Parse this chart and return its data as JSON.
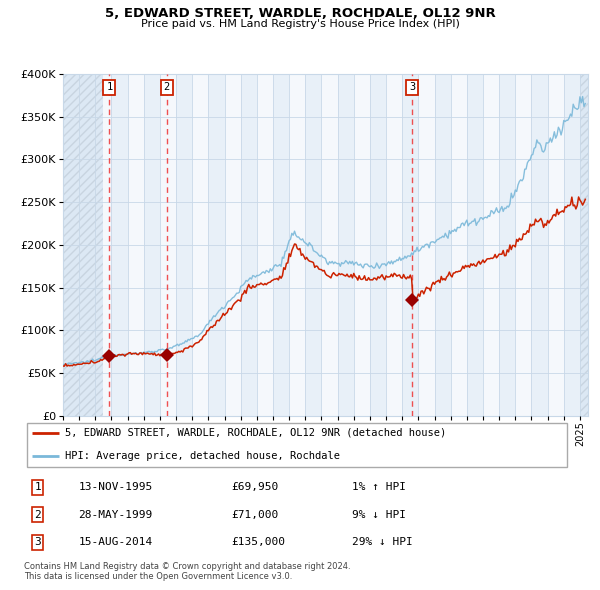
{
  "title1": "5, EDWARD STREET, WARDLE, ROCHDALE, OL12 9NR",
  "title2": "Price paid vs. HM Land Registry's House Price Index (HPI)",
  "legend1": "5, EDWARD STREET, WARDLE, ROCHDALE, OL12 9NR (detached house)",
  "legend2": "HPI: Average price, detached house, Rochdale",
  "sale1_date": "13-NOV-1995",
  "sale1_price": 69950,
  "sale1_hpi": "1% ↑ HPI",
  "sale2_date": "28-MAY-1999",
  "sale2_price": 71000,
  "sale2_hpi": "9% ↓ HPI",
  "sale3_date": "15-AUG-2014",
  "sale3_price": 135000,
  "sale3_hpi": "29% ↓ HPI",
  "sale1_x": 1995.87,
  "sale2_x": 1999.41,
  "sale3_x": 2014.62,
  "hpi_color": "#7ab8d9",
  "price_color": "#cc2200",
  "marker_color": "#990000",
  "vline_color": "#ee3333",
  "bg_light_color": "#e8f0f8",
  "bg_plain_color": "#f5f8fc",
  "grid_color": "#c8d8e8",
  "hatch_color": "#c8d4e0",
  "footer": "Contains HM Land Registry data © Crown copyright and database right 2024.\nThis data is licensed under the Open Government Licence v3.0.",
  "xmin": 1993.0,
  "xmax": 2025.5,
  "ymin": 0,
  "ymax": 400000,
  "yticks": [
    0,
    50000,
    100000,
    150000,
    200000,
    250000,
    300000,
    350000,
    400000
  ]
}
